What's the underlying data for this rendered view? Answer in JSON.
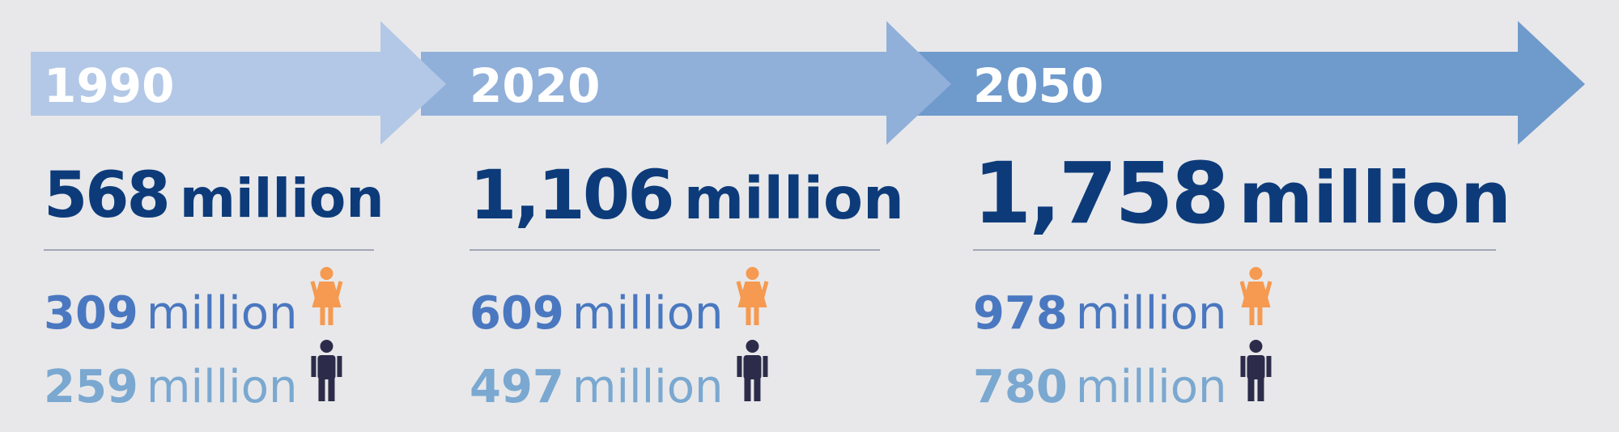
{
  "unit": "million",
  "periods": [
    {
      "year": "1990",
      "total": "568",
      "women": "309",
      "men": "259"
    },
    {
      "year": "2020",
      "total": "1,106",
      "women": "609",
      "men": "497"
    },
    {
      "year": "2050",
      "total": "1,758",
      "women": "978",
      "men": "780"
    }
  ]
}
